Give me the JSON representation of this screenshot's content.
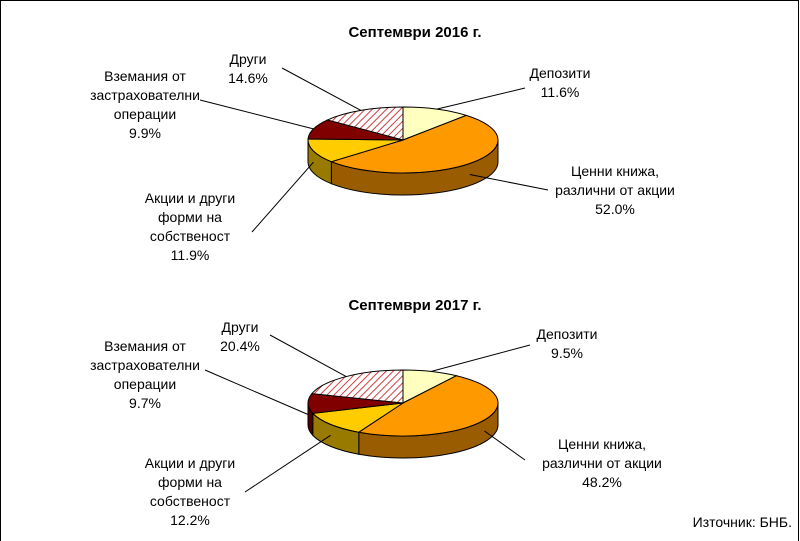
{
  "chart_data": [
    {
      "type": "pie3d",
      "title": "Септември 2016 г.",
      "categories": [
        "Депозити",
        "Ценни книжа,\nразлични от акции",
        "Акции и други\nформи на\nсобственост",
        "Вземания от\nзастрахователни\nоперации",
        "Други"
      ],
      "values": [
        11.6,
        52.0,
        11.9,
        9.9,
        14.6
      ],
      "value_labels": [
        "11.6%",
        "52.0%",
        "11.9%",
        "9.9%",
        "14.6%"
      ],
      "colors": [
        "#ffffc0",
        "#ff9900",
        "#ffcc00",
        "#800000",
        "#ff8080"
      ],
      "patterns": [
        null,
        null,
        null,
        null,
        "diagonal-hatch"
      ]
    },
    {
      "type": "pie3d",
      "title": "Септември 2017 г.",
      "categories": [
        "Депозити",
        "Ценни книжа,\nразлични от акции",
        "Акции и други\nформи на\nсобственост",
        "Вземания от\nзастрахователни\nоперации",
        "Други"
      ],
      "values": [
        9.5,
        48.2,
        12.2,
        9.7,
        20.4
      ],
      "value_labels": [
        "9.5%",
        "48.2%",
        "12.2%",
        "9.7%",
        "20.4%"
      ],
      "colors": [
        "#ffffc0",
        "#ff9900",
        "#ffcc00",
        "#800000",
        "#ff8080"
      ],
      "patterns": [
        null,
        null,
        null,
        null,
        "diagonal-hatch"
      ]
    }
  ],
  "source": "Източник: БНБ."
}
